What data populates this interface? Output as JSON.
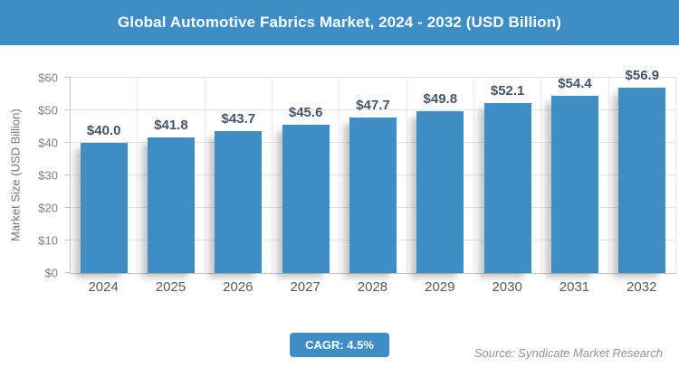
{
  "theme": {
    "accent": "#3e8ec5",
    "data_label_color": "#44546a"
  },
  "header": {
    "title": "Global Automotive Fabrics Market, 2024 - 2032 (USD Billion)"
  },
  "chart_data": {
    "type": "bar",
    "title": "Global Automotive Fabrics Market, 2024 - 2032 (USD Billion)",
    "categories": [
      "2024",
      "2025",
      "2026",
      "2027",
      "2028",
      "2029",
      "2030",
      "2031",
      "2032"
    ],
    "values": [
      40.0,
      41.8,
      43.7,
      45.6,
      47.7,
      49.8,
      52.1,
      54.4,
      56.9
    ],
    "data_labels": [
      "$40.0",
      "$41.8",
      "$43.7",
      "$45.6",
      "$47.7",
      "$49.8",
      "$52.1",
      "$54.4",
      "$56.9"
    ],
    "xlabel": "",
    "ylabel": "Market Size (USD Billion)",
    "ylim": [
      0,
      60
    ],
    "ytick_values": [
      0,
      10,
      20,
      30,
      40,
      50,
      60
    ],
    "ytick_labels": [
      "$0",
      "$10",
      "$20",
      "$30",
      "$40",
      "$50",
      "$60"
    ],
    "grid": "horizontal and vertical light gray gridlines",
    "legend": "none",
    "bar_color": "#3e8ec5"
  },
  "footer": {
    "cagr_label": "CAGR: 4.5%",
    "source": "Source: Syndicate Market Research"
  }
}
